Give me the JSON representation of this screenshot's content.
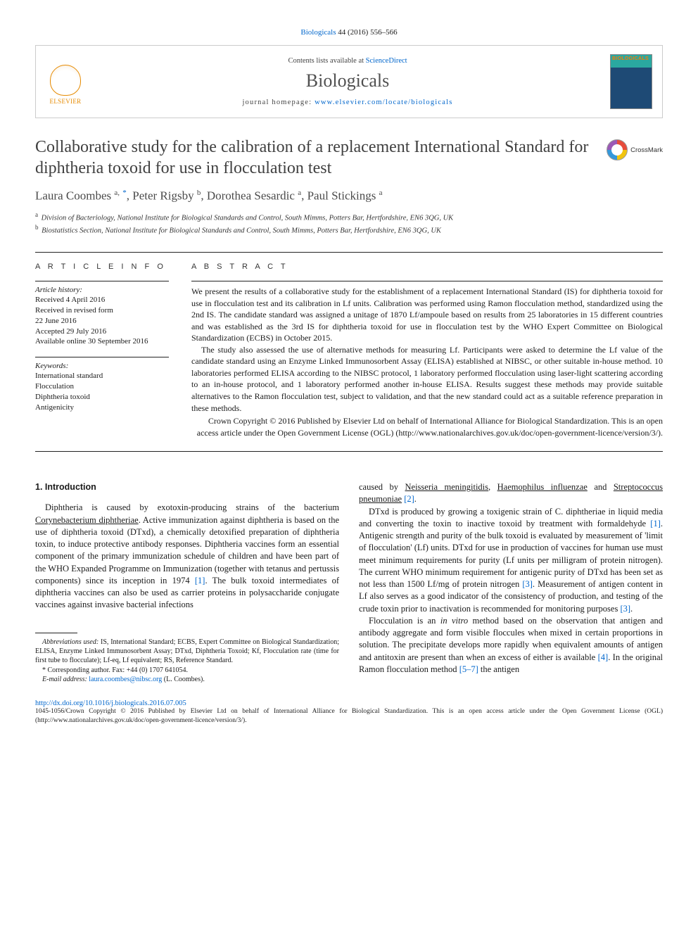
{
  "citation": {
    "journal_link": "Biologicals",
    "vol_pages": " 44 (2016) 556–566"
  },
  "header": {
    "contents_prefix": "Contents lists available at ",
    "contents_link": "ScienceDirect",
    "journal_name": "Biologicals",
    "homepage_prefix": "journal homepage: ",
    "homepage_url": "www.elsevier.com/locate/biologicals",
    "elsevier_label": "ELSEVIER",
    "cover_text": "BIOLOGICALS"
  },
  "crossmark_label": "CrossMark",
  "title": "Collaborative study for the calibration of a replacement International Standard for diphtheria toxoid for use in flocculation test",
  "authors_html": "Laura Coombes <sup>a,</sup> <sup class='sup-link'>*</sup>, Peter Rigsby <sup>b</sup>, Dorothea Sesardic <sup>a</sup>, Paul Stickings <sup>a</sup>",
  "affiliations": [
    {
      "sup": "a",
      "text": "Division of Bacteriology, National Institute for Biological Standards and Control, South Mimms, Potters Bar, Hertfordshire, EN6 3QG, UK"
    },
    {
      "sup": "b",
      "text": "Biostatistics Section, National Institute for Biological Standards and Control, South Mimms, Potters Bar, Hertfordshire, EN6 3QG, UK"
    }
  ],
  "labels": {
    "article_info": "A R T I C L E   I N F O",
    "abstract": "A B S T R A C T",
    "history": "Article history:",
    "keywords": "Keywords:"
  },
  "history": [
    "Received 4 April 2016",
    "Received in revised form",
    "22 June 2016",
    "Accepted 29 July 2016",
    "Available online 30 September 2016"
  ],
  "keywords": [
    "International standard",
    "Flocculation",
    "Diphtheria toxoid",
    "Antigenicity"
  ],
  "abstract": {
    "p1": "We present the results of a collaborative study for the establishment of a replacement International Standard (IS) for diphtheria toxoid for use in flocculation test and its calibration in Lf units. Calibration was performed using Ramon flocculation method, standardized using the 2nd IS. The candidate standard was assigned a unitage of 1870 Lf/ampoule based on results from 25 laboratories in 15 different countries and was established as the 3rd IS for diphtheria toxoid for use in flocculation test by the WHO Expert Committee on Biological Standardization (ECBS) in October 2015.",
    "p2": "The study also assessed the use of alternative methods for measuring Lf. Participants were asked to determine the Lf value of the candidate standard using an Enzyme Linked Immunosorbent Assay (ELISA) established at NIBSC, or other suitable in-house method. 10 laboratories performed ELISA according to the NIBSC protocol, 1 laboratory performed flocculation using laser-light scattering according to an in-house protocol, and 1 laboratory performed another in-house ELISA. Results suggest these methods may provide suitable alternatives to the Ramon flocculation test, subject to validation, and that the new standard could act as a suitable reference preparation in these methods.",
    "copyright": "Crown Copyright © 2016 Published by Elsevier Ltd on behalf of International Alliance for Biological Standardization. This is an open access article under the Open Government License (OGL) (http://www.nationalarchives.gov.uk/doc/open-government-licence/version/3/)."
  },
  "section1": {
    "heading": "1. Introduction"
  },
  "footnotes": {
    "abbrev_label": "Abbreviations used:",
    "abbrev": " IS, International Standard; ECBS, Expert Committee on Biological Standardization; ELISA, Enzyme Linked Immunosorbent Assay; DTxd, Diphtheria Toxoid; Kf, Flocculation rate (time for first tube to flocculate); Lf-eq, Lf equivalent; RS, Reference Standard.",
    "corr_label": "* Corresponding author. Fax: +44 (0) 1707 641054.",
    "email_label": "E-mail address: ",
    "email": "laura.coombes@nibsc.org",
    "email_who": " (L. Coombes)."
  },
  "footer": {
    "doi": "http://dx.doi.org/10.1016/j.biologicals.2016.07.005",
    "license": "1045-1056/Crown Copyright © 2016 Published by Elsevier Ltd on behalf of International Alliance for Biological Standardization. This is an open access article under the Open Government License (OGL) (http://www.nationalarchives.gov.uk/doc/open-government-licence/version/3/)."
  },
  "colors": {
    "link": "#0066cc",
    "elsevier_orange": "#e68a00",
    "cover_teal": "#2aa8a0",
    "cover_blue": "#1e4a75",
    "rule": "#222222",
    "text": "#1a1a1a",
    "title_gray": "#404040"
  },
  "typography": {
    "body_pt": 12.5,
    "abstract_pt": 12,
    "title_pt": 24,
    "journal_pt": 26,
    "authors_pt": 17,
    "affil_pt": 10.5,
    "footnote_pt": 10
  }
}
